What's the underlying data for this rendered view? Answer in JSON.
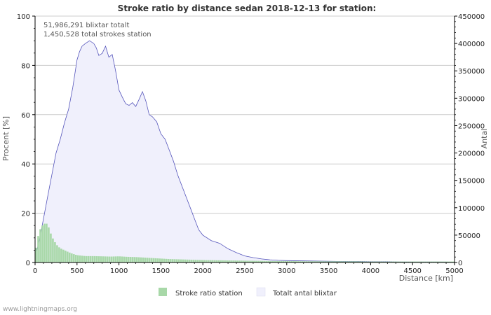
{
  "chart_data": {
    "type": "area",
    "title": "Stroke ratio by distance sedan 2018-12-13 for station:",
    "xlabel": "Distance   [km]",
    "ylabel_left": "Procent   [%]",
    "ylabel_right": "Antal",
    "xlim": [
      0,
      5000
    ],
    "ylim_left": [
      0,
      100
    ],
    "ylim_right": [
      0,
      450000
    ],
    "x_ticks": [
      0,
      500,
      1000,
      1500,
      2000,
      2500,
      3000,
      3500,
      4000,
      4500,
      5000
    ],
    "y_left_ticks": [
      0,
      20,
      40,
      60,
      80,
      100
    ],
    "y_right_ticks": [
      0,
      50000,
      100000,
      150000,
      200000,
      250000,
      300000,
      350000,
      400000,
      450000
    ],
    "grid": true,
    "annotations": [
      "51,986,291 blixtar totalt",
      "1,450,528 total strokes station"
    ],
    "series": [
      {
        "name": "Stroke ratio station",
        "axis": "left",
        "style": "bars",
        "color": "#a8d8a8",
        "x": [
          0,
          25,
          50,
          75,
          100,
          125,
          150,
          175,
          200,
          225,
          250,
          275,
          300,
          350,
          400,
          450,
          500,
          600,
          700,
          800,
          900,
          1000,
          1100,
          1200,
          1300,
          1400,
          1500,
          1600,
          1700,
          1800,
          1900,
          2000,
          2200,
          2400,
          2600,
          2800,
          3000,
          3200,
          3400,
          3600,
          3800,
          4000,
          4200,
          4400,
          4600,
          4800,
          5000
        ],
        "values": [
          3,
          9,
          12.5,
          14.5,
          15.5,
          16,
          15.5,
          13,
          10.5,
          9,
          7.5,
          6.5,
          5.8,
          5,
          4.2,
          3.5,
          3,
          2.6,
          2.6,
          2.5,
          2.4,
          2.5,
          2.3,
          2.2,
          2,
          1.8,
          1.6,
          1.4,
          1.3,
          1.2,
          1.1,
          1,
          0.9,
          0.8,
          0.7,
          0.6,
          0.6,
          0.5,
          0.5,
          0.5,
          0.5,
          0.4,
          0.4,
          0.4,
          0.4,
          0.4,
          0.4
        ]
      },
      {
        "name": "Totalt antal blixtar",
        "axis": "right",
        "style": "area",
        "color": "#f0f0fc",
        "line_color": "#5555bb",
        "x": [
          0,
          50,
          100,
          150,
          200,
          250,
          300,
          350,
          400,
          450,
          500,
          530,
          560,
          600,
          650,
          700,
          730,
          760,
          800,
          840,
          880,
          920,
          960,
          1000,
          1040,
          1080,
          1120,
          1160,
          1200,
          1240,
          1280,
          1320,
          1360,
          1400,
          1450,
          1500,
          1550,
          1600,
          1650,
          1700,
          1750,
          1800,
          1850,
          1900,
          1950,
          2000,
          2100,
          2200,
          2300,
          2400,
          2500,
          2600,
          2700,
          2800,
          2900,
          3000,
          3200,
          3400,
          3600,
          3800,
          4000,
          4200,
          4400,
          4600,
          4800,
          5000
        ],
        "values": [
          10000,
          40000,
          80000,
          120000,
          160000,
          200000,
          225000,
          255000,
          280000,
          320000,
          370000,
          385000,
          395000,
          400000,
          405000,
          400000,
          392000,
          378000,
          382000,
          395000,
          375000,
          380000,
          350000,
          315000,
          302000,
          290000,
          287000,
          292000,
          285000,
          298000,
          312000,
          295000,
          270000,
          266000,
          257000,
          235000,
          225000,
          205000,
          185000,
          160000,
          140000,
          120000,
          100000,
          80000,
          60000,
          50000,
          40000,
          35000,
          25000,
          18000,
          12000,
          9000,
          6500,
          5000,
          4000,
          3500,
          3000,
          2500,
          2000,
          2000,
          1500,
          1500,
          1200,
          1000,
          1000,
          800
        ]
      }
    ]
  },
  "footer": "www.lightningmaps.org"
}
